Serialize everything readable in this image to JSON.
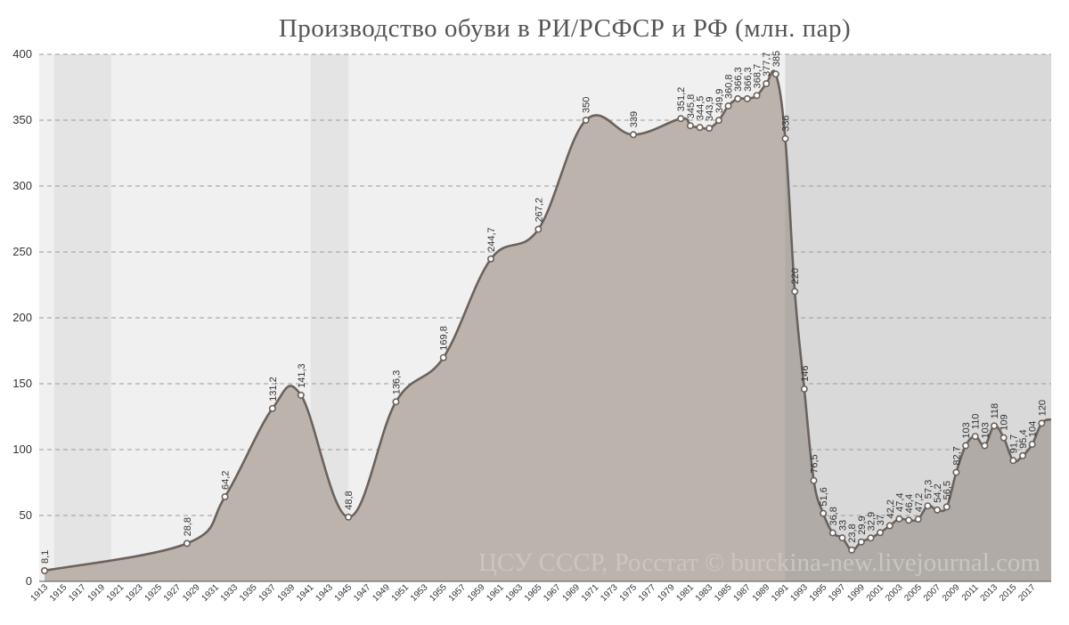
{
  "chart_data": {
    "type": "area",
    "title": "Производство обуви в РИ/РСФСР и РФ (млн. пар)",
    "credit": "ЦСУ СССР, Росстат © burckina-new.livejournal.com",
    "xlabel": "",
    "ylabel": "",
    "ylim": [
      0,
      400
    ],
    "xlim": [
      1913,
      2019
    ],
    "y_ticks": [
      "0",
      "50",
      "100",
      "150",
      "200",
      "250",
      "300",
      "350",
      "400"
    ],
    "x_ticks": [
      "1913",
      "1915",
      "1917",
      "1919",
      "1921",
      "1923",
      "1925",
      "1927",
      "1929",
      "1931",
      "1933",
      "1935",
      "1937",
      "1939",
      "1941",
      "1943",
      "1945",
      "1947",
      "1949",
      "1951",
      "1953",
      "1955",
      "1957",
      "1959",
      "1961",
      "1963",
      "1965",
      "1967",
      "1969",
      "1971",
      "1973",
      "1975",
      "1977",
      "1979",
      "1981",
      "1983",
      "1985",
      "1987",
      "1989",
      "1991",
      "1993",
      "1995",
      "1997",
      "1999",
      "2001",
      "2003",
      "2005",
      "2007",
      "2009",
      "2011",
      "2013",
      "2015",
      "2017"
    ],
    "grid": true,
    "legend": "none",
    "shaded_periods": [
      {
        "from": 1914,
        "to": 1920
      },
      {
        "from": 1941,
        "to": 1945
      },
      {
        "from": 1991,
        "to": 2019
      }
    ],
    "colors": {
      "line": "#6b625d",
      "area": "#bdb3ad",
      "area_shaded": "#b0aba7",
      "plot_bg": "#f0f0f0",
      "band_bg": "#e4e4e4",
      "right_band_bg": "#d9d9d9",
      "marker_fill": "#ffffff",
      "marker_stroke": "#6b625d"
    },
    "points": [
      {
        "x": 1913,
        "y": 8.1,
        "label": "8,1"
      },
      {
        "x": 1928,
        "y": 28.8,
        "label": "28,8"
      },
      {
        "x": 1932,
        "y": 64.2,
        "label": "64,2"
      },
      {
        "x": 1937,
        "y": 131.2,
        "label": "131,2"
      },
      {
        "x": 1940,
        "y": 141.3,
        "label": "141,3"
      },
      {
        "x": 1945,
        "y": 48.8,
        "label": "48,8"
      },
      {
        "x": 1950,
        "y": 136.3,
        "label": "136,3"
      },
      {
        "x": 1955,
        "y": 169.8,
        "label": "169,8"
      },
      {
        "x": 1960,
        "y": 244.7,
        "label": "244,7"
      },
      {
        "x": 1965,
        "y": 267.2,
        "label": "267,2"
      },
      {
        "x": 1970,
        "y": 350,
        "label": "350"
      },
      {
        "x": 1975,
        "y": 339,
        "label": "339"
      },
      {
        "x": 1980,
        "y": 351.2,
        "label": "351,2"
      },
      {
        "x": 1981,
        "y": 345.8,
        "label": "345,8"
      },
      {
        "x": 1982,
        "y": 344.5,
        "label": "344,5"
      },
      {
        "x": 1983,
        "y": 343.9,
        "label": "343,9"
      },
      {
        "x": 1984,
        "y": 349.9,
        "label": "349,9"
      },
      {
        "x": 1985,
        "y": 360.8,
        "label": "360,8"
      },
      {
        "x": 1986,
        "y": 366.3,
        "label": "366,3"
      },
      {
        "x": 1987,
        "y": 366.3,
        "label": "366,3"
      },
      {
        "x": 1988,
        "y": 368.7,
        "label": "368,7"
      },
      {
        "x": 1989,
        "y": 377.7,
        "label": "377,7"
      },
      {
        "x": 1990,
        "y": 385,
        "label": "385"
      },
      {
        "x": 1991,
        "y": 336,
        "label": "336"
      },
      {
        "x": 1992,
        "y": 220,
        "label": "220"
      },
      {
        "x": 1993,
        "y": 146,
        "label": "146"
      },
      {
        "x": 1994,
        "y": 76.5,
        "label": "76,5"
      },
      {
        "x": 1995,
        "y": 51.6,
        "label": "51,6"
      },
      {
        "x": 1996,
        "y": 36.8,
        "label": "36,8"
      },
      {
        "x": 1997,
        "y": 33,
        "label": "33"
      },
      {
        "x": 1998,
        "y": 23.8,
        "label": "23,8"
      },
      {
        "x": 1999,
        "y": 29.9,
        "label": "29,9"
      },
      {
        "x": 2000,
        "y": 32.9,
        "label": "32,9"
      },
      {
        "x": 2001,
        "y": 37,
        "label": "37"
      },
      {
        "x": 2002,
        "y": 42.2,
        "label": "42,2"
      },
      {
        "x": 2003,
        "y": 47.4,
        "label": "47,4"
      },
      {
        "x": 2004,
        "y": 46.4,
        "label": "46,4"
      },
      {
        "x": 2005,
        "y": 47.2,
        "label": "47,2"
      },
      {
        "x": 2006,
        "y": 57.3,
        "label": "57,3"
      },
      {
        "x": 2007,
        "y": 54.2,
        "label": "54,2"
      },
      {
        "x": 2008,
        "y": 56.5,
        "label": "56,5"
      },
      {
        "x": 2009,
        "y": 82.7,
        "label": "82,7"
      },
      {
        "x": 2010,
        "y": 103,
        "label": "103"
      },
      {
        "x": 2011,
        "y": 110,
        "label": "110"
      },
      {
        "x": 2012,
        "y": 103,
        "label": "103"
      },
      {
        "x": 2013,
        "y": 118,
        "label": "118"
      },
      {
        "x": 2014,
        "y": 109,
        "label": "109"
      },
      {
        "x": 2015,
        "y": 91.7,
        "label": "91,7"
      },
      {
        "x": 2016,
        "y": 95.4,
        "label": "95,4"
      },
      {
        "x": 2017,
        "y": 104,
        "label": "104"
      },
      {
        "x": 2018,
        "y": 120,
        "label": "120"
      },
      {
        "x": 2019,
        "y": 123,
        "label": ""
      }
    ]
  }
}
